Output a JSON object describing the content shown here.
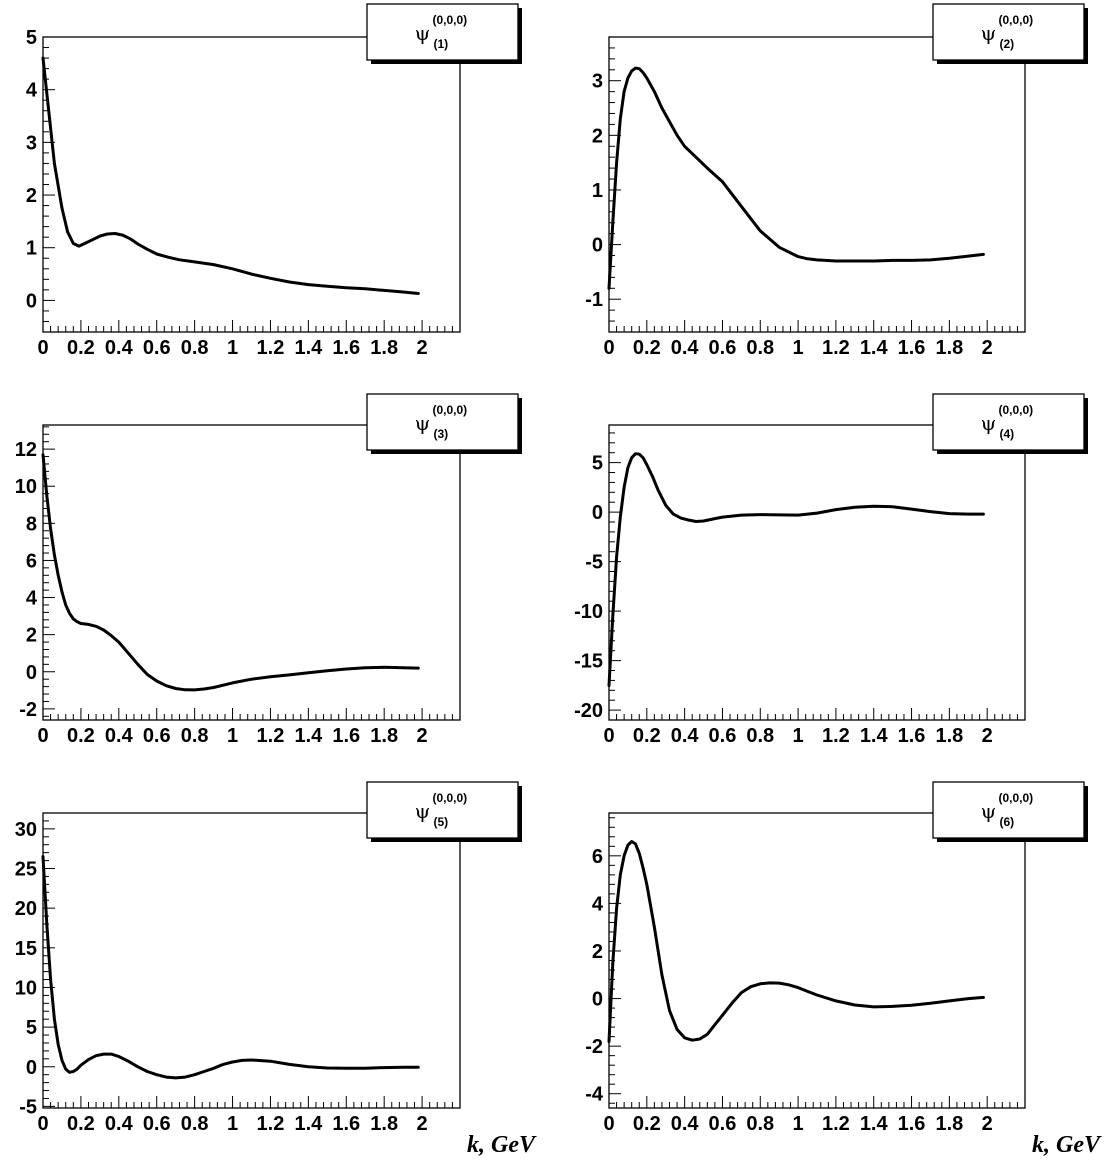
{
  "chart_data": [
    {
      "type": "line",
      "legend": {
        "symbol": "ψ",
        "superscript": "(0,0,0)",
        "subscript": "(1)"
      },
      "xlabel": "",
      "ylabel": "",
      "xlim": [
        0,
        2.2
      ],
      "ylim": [
        -0.6,
        5
      ],
      "xticks": [
        "0",
        "0.2",
        "0.4",
        "0.6",
        "0.8",
        "1",
        "1.2",
        "1.4",
        "1.6",
        "1.8",
        "2"
      ],
      "yticks": [
        "0",
        "1",
        "2",
        "3",
        "4",
        "5"
      ],
      "series": [
        {
          "x": [
            0,
            0.03,
            0.06,
            0.1,
            0.13,
            0.16,
            0.19,
            0.22,
            0.26,
            0.3,
            0.34,
            0.38,
            0.42,
            0.46,
            0.5,
            0.55,
            0.6,
            0.66,
            0.72,
            0.8,
            0.9,
            1.0,
            1.1,
            1.2,
            1.3,
            1.4,
            1.5,
            1.6,
            1.7,
            1.8,
            1.9,
            1.98
          ],
          "y": [
            4.6,
            3.6,
            2.6,
            1.75,
            1.3,
            1.08,
            1.03,
            1.08,
            1.15,
            1.22,
            1.26,
            1.27,
            1.24,
            1.17,
            1.07,
            0.97,
            0.88,
            0.82,
            0.77,
            0.73,
            0.68,
            0.6,
            0.5,
            0.42,
            0.35,
            0.3,
            0.27,
            0.24,
            0.22,
            0.19,
            0.16,
            0.13
          ]
        }
      ]
    },
    {
      "type": "line",
      "legend": {
        "symbol": "ψ",
        "superscript": "(0,0,0)",
        "subscript": "(2)"
      },
      "xlabel": "",
      "ylabel": "",
      "xlim": [
        0,
        2.2
      ],
      "ylim": [
        -1.6,
        3.8
      ],
      "xticks": [
        "0",
        "0.2",
        "0.4",
        "0.6",
        "0.8",
        "1",
        "1.2",
        "1.4",
        "1.6",
        "1.8",
        "2"
      ],
      "yticks": [
        "-1",
        "0",
        "1",
        "2",
        "3"
      ],
      "series": [
        {
          "x": [
            0,
            0.02,
            0.04,
            0.06,
            0.08,
            0.1,
            0.12,
            0.14,
            0.16,
            0.18,
            0.2,
            0.24,
            0.28,
            0.32,
            0.36,
            0.4,
            0.46,
            0.52,
            0.6,
            0.7,
            0.8,
            0.9,
            1.0,
            1.05,
            1.1,
            1.2,
            1.3,
            1.4,
            1.5,
            1.6,
            1.7,
            1.8,
            1.9,
            1.98
          ],
          "y": [
            -0.8,
            0.4,
            1.5,
            2.3,
            2.8,
            3.05,
            3.18,
            3.23,
            3.22,
            3.15,
            3.05,
            2.8,
            2.5,
            2.25,
            2.0,
            1.8,
            1.6,
            1.4,
            1.15,
            0.7,
            0.25,
            -0.05,
            -0.22,
            -0.26,
            -0.28,
            -0.3,
            -0.3,
            -0.3,
            -0.29,
            -0.29,
            -0.28,
            -0.25,
            -0.21,
            -0.18
          ]
        }
      ]
    },
    {
      "type": "line",
      "legend": {
        "symbol": "ψ",
        "superscript": "(0,0,0)",
        "subscript": "(3)"
      },
      "xlabel": "",
      "ylabel": "",
      "xlim": [
        0,
        2.2
      ],
      "ylim": [
        -2.6,
        13.3
      ],
      "xticks": [
        "0",
        "0.2",
        "0.4",
        "0.6",
        "0.8",
        "1",
        "1.2",
        "1.4",
        "1.6",
        "1.8",
        "2"
      ],
      "yticks": [
        "-2",
        "0",
        "2",
        "4",
        "6",
        "8",
        "10",
        "12"
      ],
      "series": [
        {
          "x": [
            0,
            0.02,
            0.04,
            0.06,
            0.08,
            0.1,
            0.12,
            0.14,
            0.16,
            0.18,
            0.2,
            0.24,
            0.28,
            0.32,
            0.36,
            0.4,
            0.45,
            0.5,
            0.55,
            0.6,
            0.65,
            0.7,
            0.75,
            0.8,
            0.85,
            0.9,
            1.0,
            1.1,
            1.2,
            1.3,
            1.4,
            1.5,
            1.6,
            1.7,
            1.8,
            1.9,
            1.98
          ],
          "y": [
            11.7,
            9.5,
            7.7,
            6.3,
            5.2,
            4.3,
            3.6,
            3.15,
            2.85,
            2.7,
            2.6,
            2.55,
            2.45,
            2.25,
            1.95,
            1.6,
            1.0,
            0.4,
            -0.15,
            -0.5,
            -0.75,
            -0.9,
            -0.97,
            -0.98,
            -0.93,
            -0.85,
            -0.6,
            -0.4,
            -0.27,
            -0.17,
            -0.05,
            0.05,
            0.15,
            0.22,
            0.24,
            0.22,
            0.2
          ]
        }
      ]
    },
    {
      "type": "line",
      "legend": {
        "symbol": "ψ",
        "superscript": "(0,0,0)",
        "subscript": "(4)"
      },
      "xlabel": "",
      "ylabel": "",
      "xlim": [
        0,
        2.2
      ],
      "ylim": [
        -21,
        8.8
      ],
      "xticks": [
        "0",
        "0.2",
        "0.4",
        "0.6",
        "0.8",
        "1",
        "1.2",
        "1.4",
        "1.6",
        "1.8",
        "2"
      ],
      "yticks": [
        "-20",
        "-15",
        "-10",
        "-5",
        "0",
        "5"
      ],
      "series": [
        {
          "x": [
            0,
            0.02,
            0.04,
            0.06,
            0.08,
            0.1,
            0.12,
            0.14,
            0.16,
            0.18,
            0.2,
            0.23,
            0.26,
            0.3,
            0.34,
            0.38,
            0.42,
            0.46,
            0.5,
            0.55,
            0.6,
            0.7,
            0.8,
            0.9,
            1.0,
            1.1,
            1.2,
            1.3,
            1.4,
            1.5,
            1.6,
            1.7,
            1.8,
            1.9,
            1.98
          ],
          "y": [
            -17.5,
            -10.5,
            -4.5,
            -0.5,
            2.5,
            4.5,
            5.5,
            5.9,
            5.85,
            5.5,
            4.8,
            3.6,
            2.2,
            0.7,
            -0.2,
            -0.6,
            -0.8,
            -0.95,
            -0.9,
            -0.7,
            -0.5,
            -0.3,
            -0.25,
            -0.28,
            -0.3,
            -0.1,
            0.25,
            0.5,
            0.6,
            0.55,
            0.3,
            0.05,
            -0.15,
            -0.2,
            -0.2
          ]
        }
      ]
    },
    {
      "type": "line",
      "legend": {
        "symbol": "ψ",
        "superscript": "(0,0,0)",
        "subscript": "(5)"
      },
      "xlabel": "k, GeV",
      "ylabel": "",
      "xlim": [
        0,
        2.2
      ],
      "ylim": [
        -5.2,
        32
      ],
      "xticks": [
        "0",
        "0.2",
        "0.4",
        "0.6",
        "0.8",
        "1",
        "1.2",
        "1.4",
        "1.6",
        "1.8",
        "2"
      ],
      "yticks": [
        "-5",
        "0",
        "5",
        "10",
        "15",
        "20",
        "25",
        "30"
      ],
      "series": [
        {
          "x": [
            0,
            0.02,
            0.04,
            0.06,
            0.08,
            0.1,
            0.12,
            0.14,
            0.16,
            0.18,
            0.2,
            0.24,
            0.28,
            0.32,
            0.36,
            0.4,
            0.45,
            0.5,
            0.55,
            0.6,
            0.65,
            0.7,
            0.75,
            0.8,
            0.85,
            0.9,
            0.95,
            1.0,
            1.05,
            1.1,
            1.2,
            1.3,
            1.4,
            1.5,
            1.6,
            1.7,
            1.8,
            1.9,
            1.98
          ],
          "y": [
            26.5,
            18,
            11,
            6,
            2.8,
            0.8,
            -0.3,
            -0.7,
            -0.6,
            -0.3,
            0.2,
            0.9,
            1.4,
            1.6,
            1.6,
            1.3,
            0.7,
            0.0,
            -0.6,
            -1.0,
            -1.3,
            -1.4,
            -1.3,
            -1.0,
            -0.6,
            -0.2,
            0.3,
            0.6,
            0.8,
            0.85,
            0.7,
            0.3,
            0.0,
            -0.15,
            -0.2,
            -0.2,
            -0.1,
            -0.05,
            -0.05
          ]
        }
      ]
    },
    {
      "type": "line",
      "legend": {
        "symbol": "ψ",
        "superscript": "(0,0,0)",
        "subscript": "(6)"
      },
      "xlabel": "k, GeV",
      "ylabel": "",
      "xlim": [
        0,
        2.2
      ],
      "ylim": [
        -4.6,
        7.8
      ],
      "xticks": [
        "0",
        "0.2",
        "0.4",
        "0.6",
        "0.8",
        "1",
        "1.2",
        "1.4",
        "1.6",
        "1.8",
        "2"
      ],
      "yticks": [
        "-4",
        "-2",
        "0",
        "2",
        "4",
        "6"
      ],
      "series": [
        {
          "x": [
            0,
            0.02,
            0.04,
            0.06,
            0.08,
            0.1,
            0.12,
            0.14,
            0.16,
            0.18,
            0.2,
            0.24,
            0.28,
            0.32,
            0.36,
            0.4,
            0.44,
            0.48,
            0.52,
            0.56,
            0.6,
            0.65,
            0.7,
            0.75,
            0.8,
            0.85,
            0.9,
            0.95,
            1.0,
            1.05,
            1.1,
            1.2,
            1.3,
            1.4,
            1.5,
            1.6,
            1.7,
            1.8,
            1.9,
            1.98
          ],
          "y": [
            -1.8,
            1.5,
            3.8,
            5.2,
            6.0,
            6.45,
            6.6,
            6.5,
            6.1,
            5.5,
            4.8,
            3.0,
            1.0,
            -0.5,
            -1.3,
            -1.65,
            -1.75,
            -1.7,
            -1.5,
            -1.1,
            -0.7,
            -0.2,
            0.25,
            0.5,
            0.62,
            0.66,
            0.65,
            0.58,
            0.46,
            0.3,
            0.15,
            -0.1,
            -0.27,
            -0.35,
            -0.33,
            -0.28,
            -0.2,
            -0.1,
            0.0,
            0.05
          ]
        }
      ]
    }
  ]
}
